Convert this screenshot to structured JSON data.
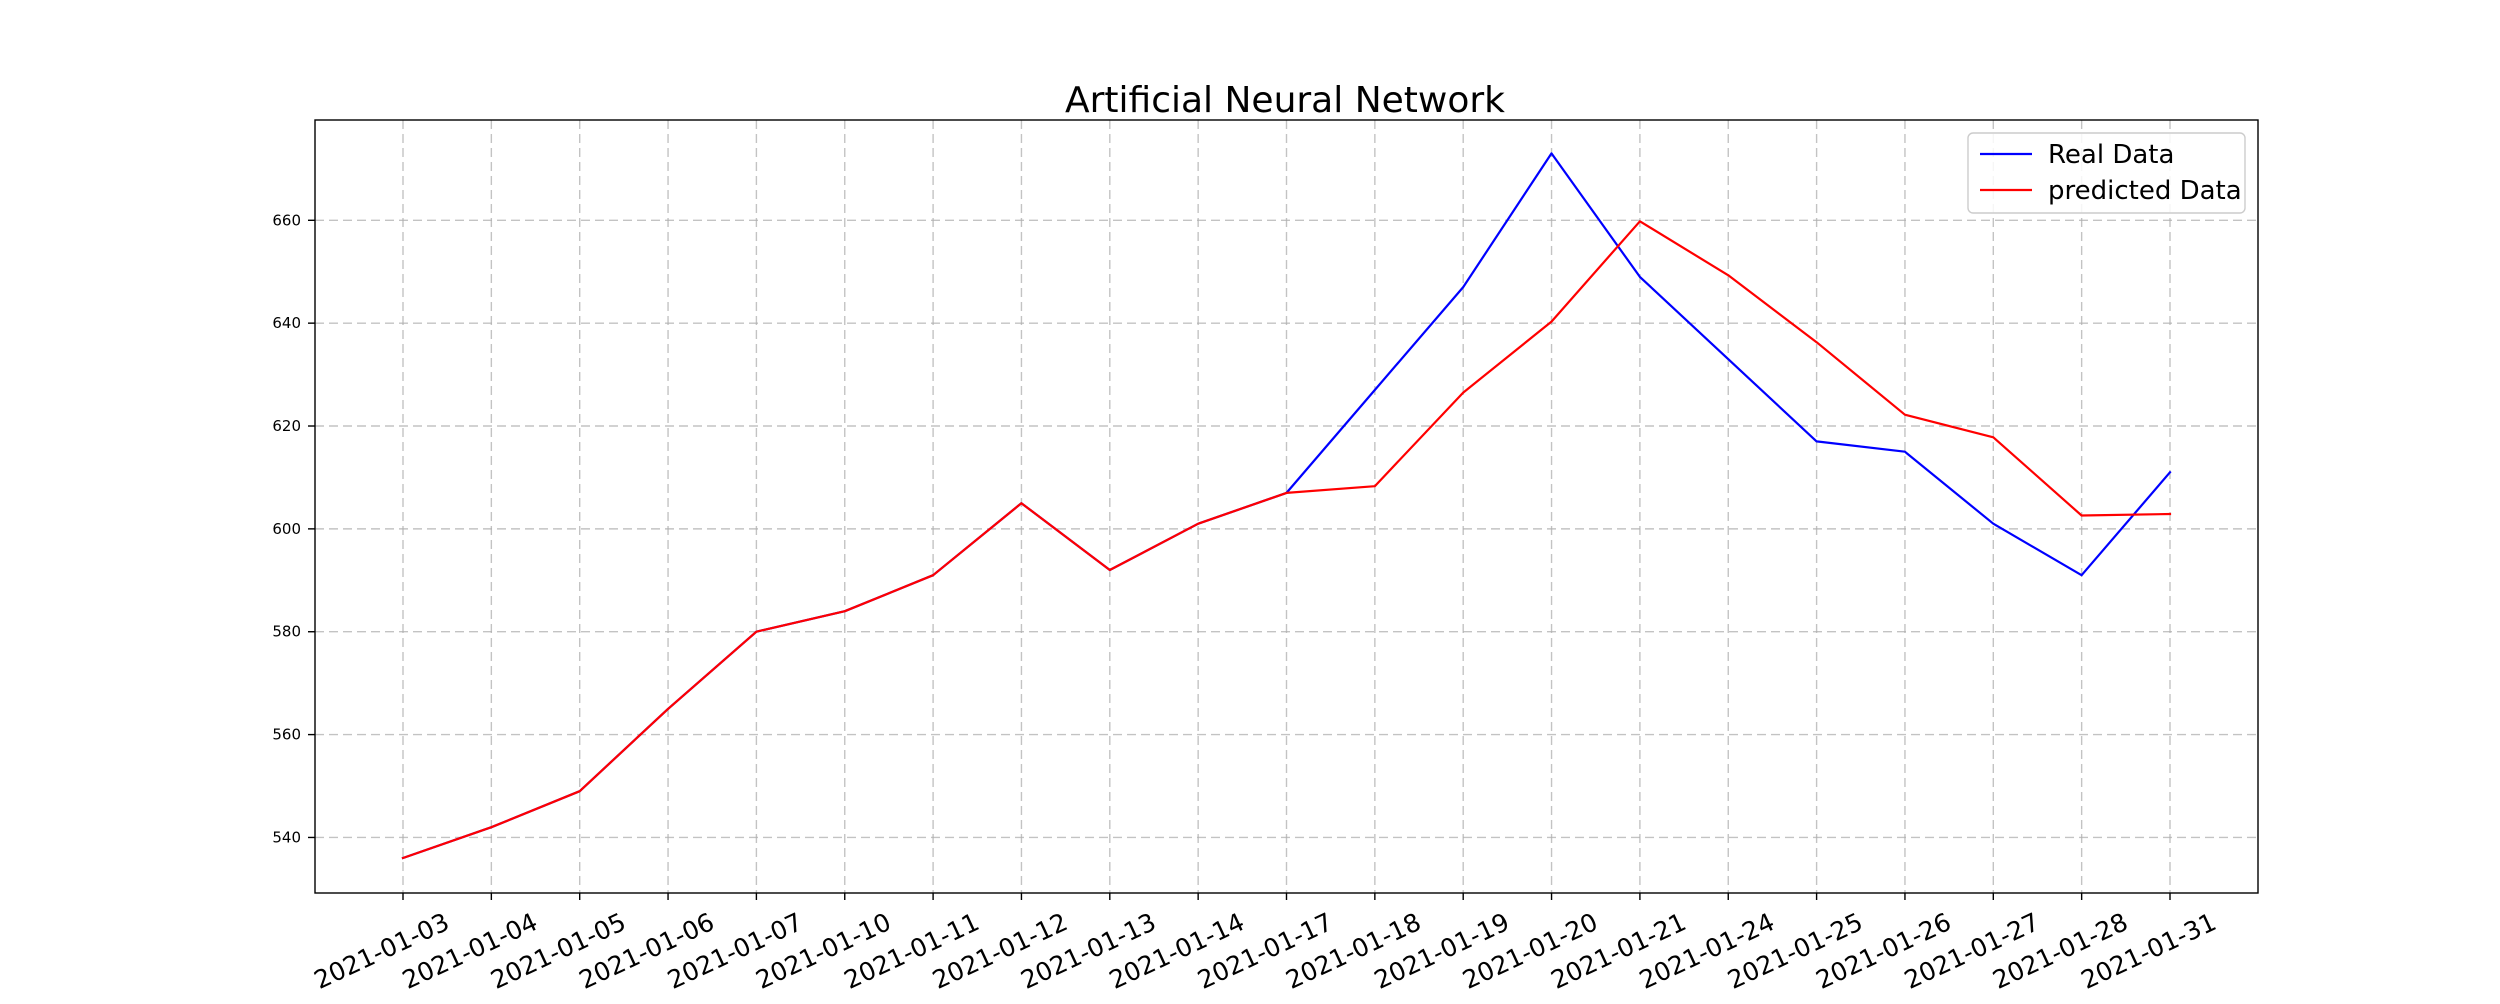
{
  "chart_data": {
    "type": "line",
    "title": "Artificial Neural Network",
    "xlabel": "",
    "ylabel": "",
    "x": [
      "2021-01-03",
      "2021-01-04",
      "2021-01-05",
      "2021-01-06",
      "2021-01-07",
      "2021-01-10",
      "2021-01-11",
      "2021-01-12",
      "2021-01-13",
      "2021-01-14",
      "2021-01-17",
      "2021-01-18",
      "2021-01-19",
      "2021-01-20",
      "2021-01-21",
      "2021-01-24",
      "2021-01-25",
      "2021-01-26",
      "2021-01-27",
      "2021-01-28",
      "2021-01-31"
    ],
    "y_ticks": [
      540,
      560,
      580,
      600,
      620,
      640,
      660
    ],
    "ylim": [
      529.2,
      679.5
    ],
    "grid": true,
    "legend_position": "top-right",
    "series": [
      {
        "name": "Real Data",
        "color": "#0000ff",
        "values": [
          536,
          542,
          549,
          565,
          580,
          584,
          591,
          605,
          592,
          601,
          607,
          627,
          647,
          673,
          649,
          633,
          617,
          615,
          601,
          591,
          611
        ]
      },
      {
        "name": "predicted Data",
        "color": "#ff0000",
        "values": [
          536,
          542,
          549,
          565,
          580,
          584,
          591,
          605,
          592,
          601,
          607,
          608.3,
          626.5,
          640.3,
          659.8,
          649.3,
          636.3,
          622.2,
          617.8,
          602.6,
          602.9
        ]
      }
    ]
  }
}
